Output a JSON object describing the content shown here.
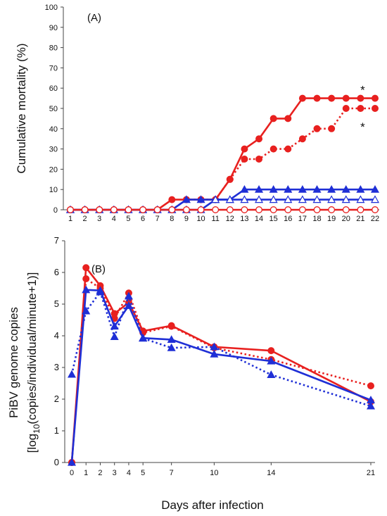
{
  "chart_data": [
    {
      "type": "line",
      "panel_label": "(A)",
      "ylabel": "Cumulative mortality (%)",
      "xlabel": "",
      "ylim": [
        0,
        100
      ],
      "yticks": [
        0,
        10,
        20,
        30,
        40,
        50,
        60,
        70,
        80,
        90,
        100
      ],
      "xlim": [
        1,
        22
      ],
      "xticks": [
        1,
        2,
        3,
        4,
        5,
        6,
        7,
        8,
        9,
        10,
        11,
        12,
        13,
        14,
        15,
        16,
        17,
        18,
        19,
        20,
        21,
        22
      ],
      "grid": false,
      "legend": "none",
      "annotations": [
        {
          "text": "*",
          "x": 21,
          "y": 55
        },
        {
          "text": "*",
          "x": 21,
          "y": 50
        }
      ],
      "series": [
        {
          "color": "#e8201f",
          "line": "solid",
          "marker": "circle-filled",
          "points": [
            [
              1,
              0
            ],
            [
              2,
              0
            ],
            [
              3,
              0
            ],
            [
              4,
              0
            ],
            [
              5,
              0
            ],
            [
              6,
              0
            ],
            [
              7,
              0
            ],
            [
              8,
              5
            ],
            [
              9,
              5
            ],
            [
              10,
              5
            ],
            [
              11,
              5
            ],
            [
              12,
              15
            ],
            [
              13,
              30
            ],
            [
              14,
              35
            ],
            [
              15,
              45
            ],
            [
              16,
              45
            ],
            [
              17,
              55
            ],
            [
              18,
              55
            ],
            [
              19,
              55
            ],
            [
              20,
              55
            ],
            [
              21,
              55
            ],
            [
              22,
              55
            ]
          ]
        },
        {
          "color": "#e8201f",
          "line": "dotted",
          "marker": "circle-filled",
          "points": [
            [
              1,
              0
            ],
            [
              2,
              0
            ],
            [
              3,
              0
            ],
            [
              4,
              0
            ],
            [
              5,
              0
            ],
            [
              6,
              0
            ],
            [
              7,
              0
            ],
            [
              8,
              0
            ],
            [
              9,
              5
            ],
            [
              10,
              5
            ],
            [
              11,
              5
            ],
            [
              12,
              15
            ],
            [
              13,
              25
            ],
            [
              14,
              25
            ],
            [
              15,
              30
            ],
            [
              16,
              30
            ],
            [
              17,
              35
            ],
            [
              18,
              40
            ],
            [
              19,
              40
            ],
            [
              20,
              50
            ],
            [
              21,
              50
            ],
            [
              22,
              50
            ]
          ]
        },
        {
          "color": "#1f2fd6",
          "line": "solid",
          "marker": "triangle-filled",
          "points": [
            [
              1,
              0
            ],
            [
              2,
              0
            ],
            [
              3,
              0
            ],
            [
              4,
              0
            ],
            [
              5,
              0
            ],
            [
              6,
              0
            ],
            [
              7,
              0
            ],
            [
              8,
              0
            ],
            [
              9,
              5
            ],
            [
              10,
              5
            ],
            [
              11,
              5
            ],
            [
              12,
              5
            ],
            [
              13,
              10
            ],
            [
              14,
              10
            ],
            [
              15,
              10
            ],
            [
              16,
              10
            ],
            [
              17,
              10
            ],
            [
              18,
              10
            ],
            [
              19,
              10
            ],
            [
              20,
              10
            ],
            [
              21,
              10
            ],
            [
              22,
              10
            ]
          ]
        },
        {
          "color": "#1f2fd6",
          "line": "solid",
          "marker": "triangle-open",
          "points": [
            [
              1,
              0
            ],
            [
              2,
              0
            ],
            [
              3,
              0
            ],
            [
              4,
              0
            ],
            [
              5,
              0
            ],
            [
              6,
              0
            ],
            [
              7,
              0
            ],
            [
              8,
              0
            ],
            [
              9,
              0
            ],
            [
              10,
              0
            ],
            [
              11,
              5
            ],
            [
              12,
              5
            ],
            [
              13,
              5
            ],
            [
              14,
              5
            ],
            [
              15,
              5
            ],
            [
              16,
              5
            ],
            [
              17,
              5
            ],
            [
              18,
              5
            ],
            [
              19,
              5
            ],
            [
              20,
              5
            ],
            [
              21,
              5
            ],
            [
              22,
              5
            ]
          ]
        },
        {
          "color": "#e8201f",
          "line": "solid",
          "marker": "circle-open",
          "points": [
            [
              1,
              0
            ],
            [
              2,
              0
            ],
            [
              3,
              0
            ],
            [
              4,
              0
            ],
            [
              5,
              0
            ],
            [
              6,
              0
            ],
            [
              7,
              0
            ],
            [
              8,
              0
            ],
            [
              9,
              0
            ],
            [
              10,
              0
            ],
            [
              11,
              0
            ],
            [
              12,
              0
            ],
            [
              13,
              0
            ],
            [
              14,
              0
            ],
            [
              15,
              0
            ],
            [
              16,
              0
            ],
            [
              17,
              0
            ],
            [
              18,
              0
            ],
            [
              19,
              0
            ],
            [
              20,
              0
            ],
            [
              21,
              0
            ],
            [
              22,
              0
            ]
          ]
        }
      ]
    },
    {
      "type": "line",
      "panel_label": "(B)",
      "ylabel": "PiBV genome copies",
      "ylabel_line2": [
        "[log",
        "10",
        "(copies/individual/minute+1)]"
      ],
      "xlabel": "Days after infection",
      "ylim": [
        0,
        7
      ],
      "yticks": [
        0,
        1,
        2,
        3,
        4,
        5,
        6,
        7
      ],
      "xlim": [
        0,
        21
      ],
      "xticks": [
        0,
        1,
        2,
        3,
        4,
        5,
        7,
        10,
        14,
        21
      ],
      "grid": false,
      "legend": "none",
      "series": [
        {
          "color": "#e8201f",
          "line": "solid",
          "marker": "circle-filled",
          "points": [
            [
              0,
              0
            ],
            [
              1,
              6.15
            ],
            [
              2,
              5.58
            ],
            [
              3,
              4.7
            ],
            [
              4,
              5.05
            ],
            [
              5,
              4.15
            ],
            [
              7,
              4.32
            ],
            [
              10,
              3.65
            ],
            [
              14,
              3.53
            ],
            [
              21,
              1.92
            ]
          ]
        },
        {
          "color": "#e8201f",
          "line": "dotted",
          "marker": "circle-filled",
          "points": [
            [
              0,
              0
            ],
            [
              1,
              5.8
            ],
            [
              2,
              5.5
            ],
            [
              3,
              4.55
            ],
            [
              4,
              5.35
            ],
            [
              5,
              4.1
            ],
            [
              7,
              4.3
            ],
            [
              10,
              3.62
            ],
            [
              14,
              3.25
            ],
            [
              21,
              2.42
            ]
          ]
        },
        {
          "color": "#1f2fd6",
          "line": "solid",
          "marker": "triangle-filled",
          "points": [
            [
              0,
              0
            ],
            [
              1,
              5.45
            ],
            [
              2,
              5.43
            ],
            [
              3,
              4.3
            ],
            [
              4,
              4.95
            ],
            [
              5,
              3.93
            ],
            [
              7,
              3.88
            ],
            [
              10,
              3.42
            ],
            [
              14,
              3.2
            ],
            [
              21,
              1.97
            ]
          ]
        },
        {
          "color": "#1f2fd6",
          "line": "dotted",
          "marker": "triangle-filled",
          "points": [
            [
              0,
              2.78
            ],
            [
              1,
              4.78
            ],
            [
              2,
              5.38
            ],
            [
              3,
              3.97
            ],
            [
              4,
              5.25
            ],
            [
              5,
              3.92
            ],
            [
              7,
              3.62
            ],
            [
              10,
              3.65
            ],
            [
              14,
              2.77
            ],
            [
              21,
              1.78
            ]
          ]
        }
      ]
    }
  ]
}
